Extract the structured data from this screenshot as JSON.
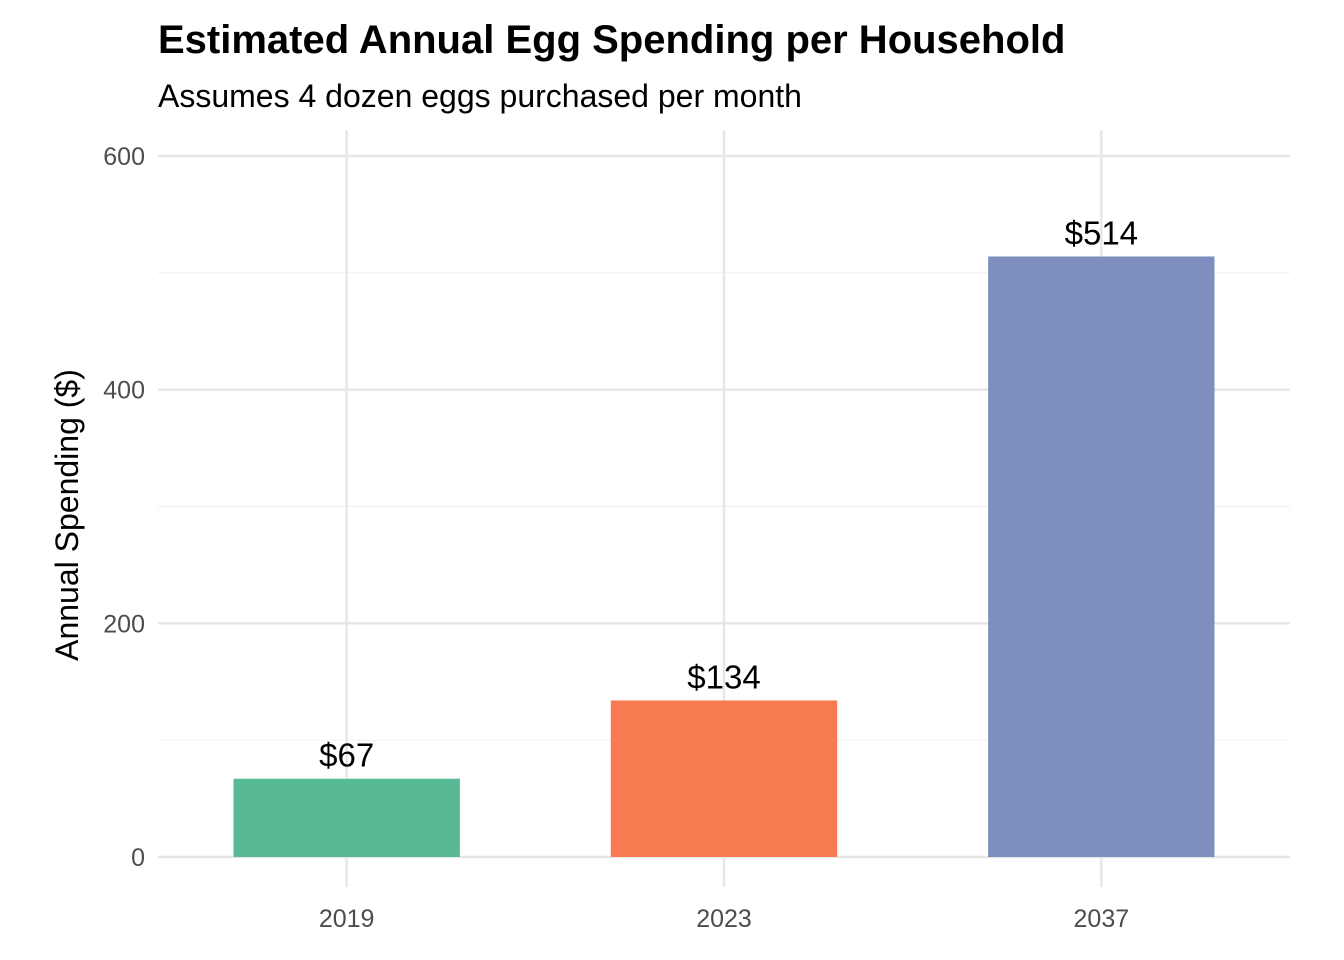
{
  "chart_data": {
    "type": "bar",
    "title": "Estimated Annual Egg Spending per Household",
    "subtitle": "Assumes 4 dozen eggs purchased per month",
    "xlabel": "",
    "ylabel": "Annual Spending ($)",
    "categories": [
      "2019",
      "2023",
      "2037"
    ],
    "values": [
      67,
      134,
      514
    ],
    "data_labels": [
      "$67",
      "$134",
      "$514"
    ],
    "colors": [
      "#58B995",
      "#F87B52",
      "#7D8FBF"
    ],
    "ylim": [
      0,
      600
    ],
    "y_ticks": [
      0,
      200,
      400,
      600
    ],
    "y_tick_labels": [
      "0",
      "200",
      "400",
      "600"
    ],
    "grid": true,
    "legend": "none"
  }
}
